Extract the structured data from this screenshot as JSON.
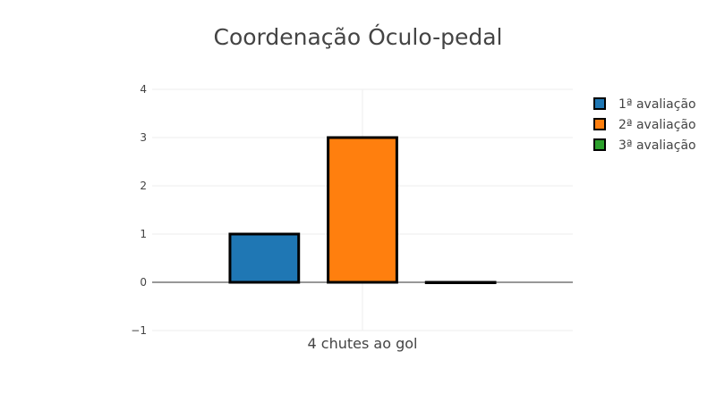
{
  "chart_data": {
    "type": "bar",
    "title": "Coordenação Óculo-pedal",
    "xlabel": "",
    "ylabel": "",
    "categories": [
      "4 chutes ao gol"
    ],
    "series": [
      {
        "name": "1ª avaliação",
        "values": [
          1
        ],
        "color": "#1f77b4"
      },
      {
        "name": "2ª avaliação",
        "values": [
          3
        ],
        "color": "#ff7f0e"
      },
      {
        "name": "3ª avaliação",
        "values": [
          0
        ],
        "color": "#2ca02c"
      }
    ],
    "ylim": [
      -1,
      4
    ],
    "yticks": [
      -1,
      0,
      1,
      2,
      3,
      4
    ],
    "ytick_labels": [
      "−1",
      "0",
      "1",
      "2",
      "3",
      "4"
    ],
    "grid": true,
    "legend_position": "top-right",
    "bar_outline_color": "#000000"
  }
}
